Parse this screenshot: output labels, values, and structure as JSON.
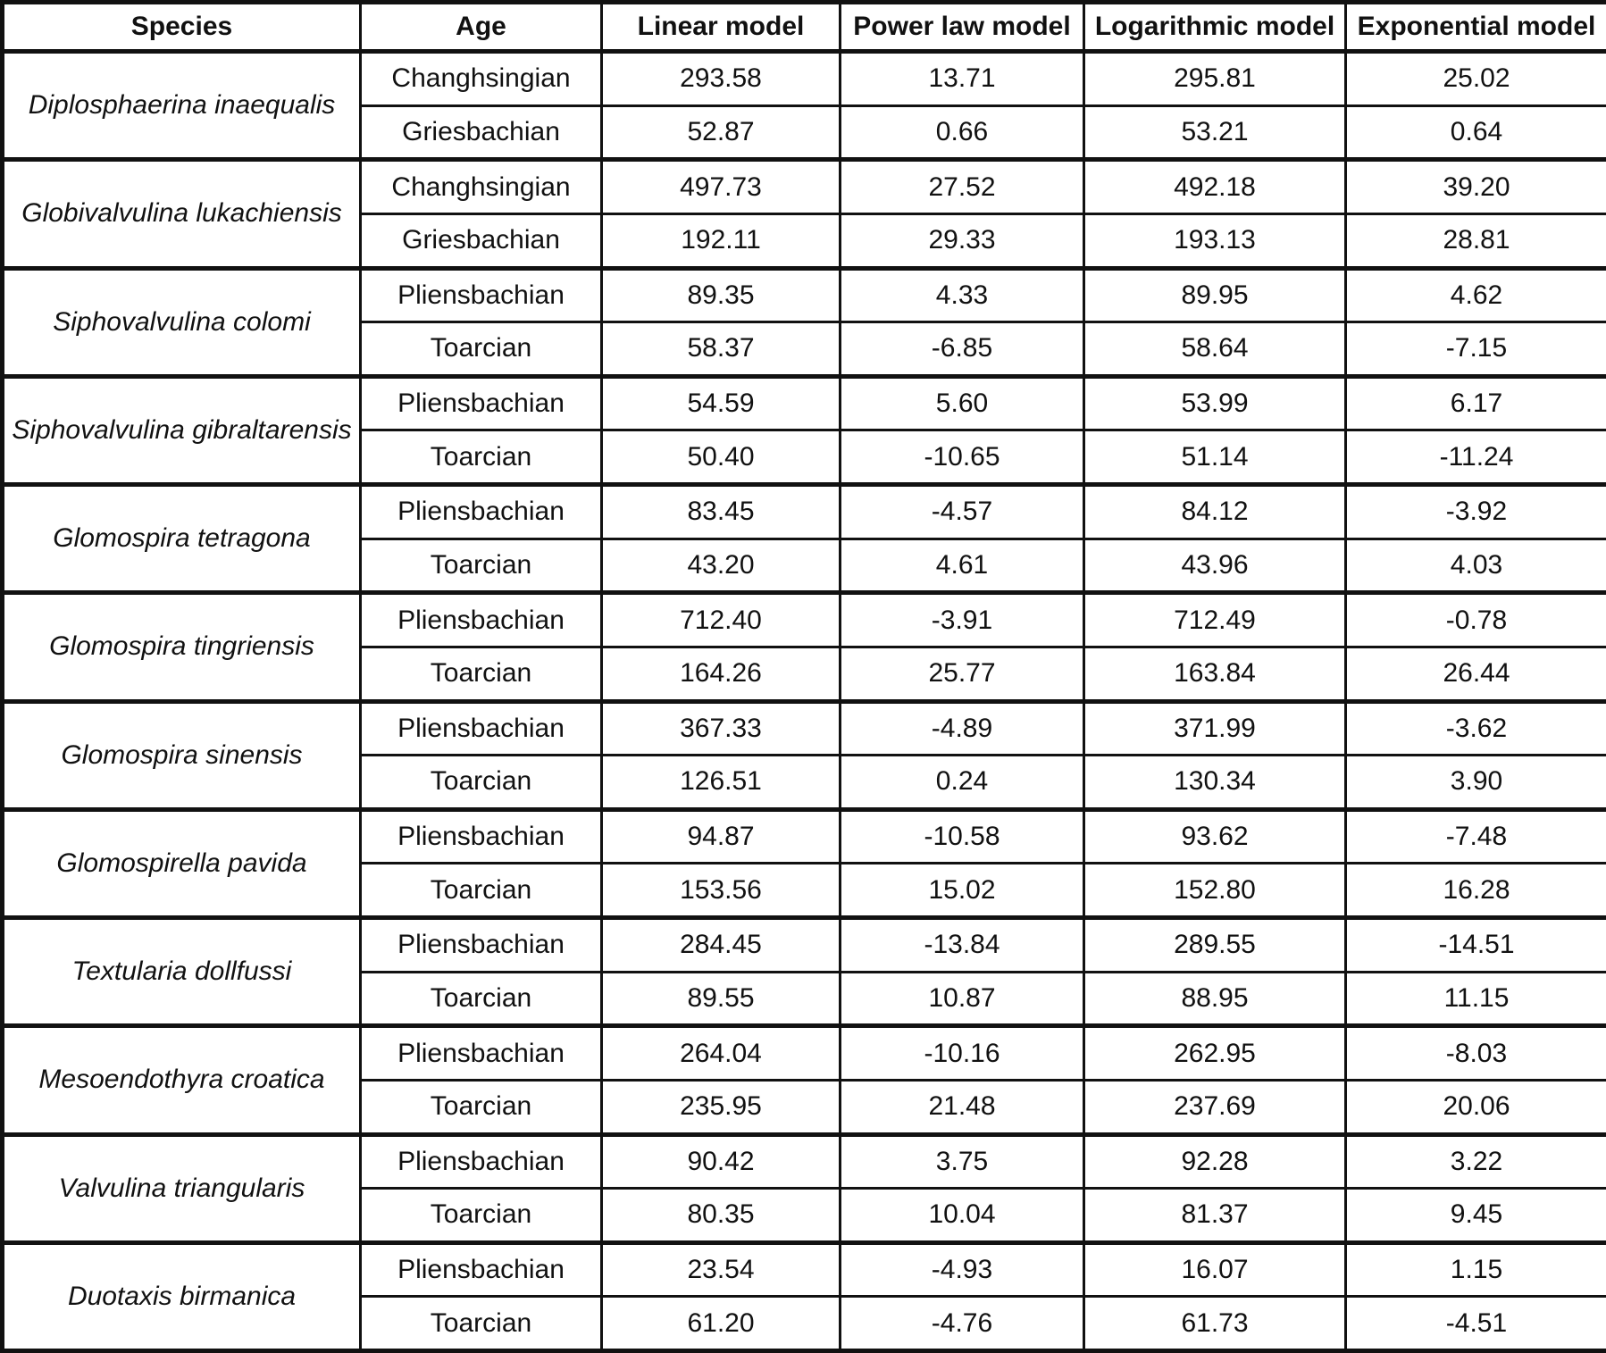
{
  "chart_data": {
    "type": "table",
    "columns": [
      "Species",
      "Age",
      "Linear model",
      "Power law model",
      "Logarithmic model",
      "Exponential model"
    ],
    "species_groups": [
      {
        "species": "Diplosphaerina inaequalis",
        "rows": [
          {
            "age": "Changhsingian",
            "values": [
              "293.58",
              "13.71",
              "295.81",
              "25.02"
            ]
          },
          {
            "age": "Griesbachian",
            "values": [
              "52.87",
              "0.66",
              "53.21",
              "0.64"
            ]
          }
        ]
      },
      {
        "species": "Globivalvulina lukachiensis",
        "rows": [
          {
            "age": "Changhsingian",
            "values": [
              "497.73",
              "27.52",
              "492.18",
              "39.20"
            ]
          },
          {
            "age": "Griesbachian",
            "values": [
              "192.11",
              "29.33",
              "193.13",
              "28.81"
            ]
          }
        ]
      },
      {
        "species": "Siphovalvulina colomi",
        "rows": [
          {
            "age": "Pliensbachian",
            "values": [
              "89.35",
              "4.33",
              "89.95",
              "4.62"
            ]
          },
          {
            "age": "Toarcian",
            "values": [
              "58.37",
              "-6.85",
              "58.64",
              "-7.15"
            ]
          }
        ]
      },
      {
        "species": "Siphovalvulina gibraltarensis",
        "rows": [
          {
            "age": "Pliensbachian",
            "values": [
              "54.59",
              "5.60",
              "53.99",
              "6.17"
            ]
          },
          {
            "age": "Toarcian",
            "values": [
              "50.40",
              "-10.65",
              "51.14",
              "-11.24"
            ]
          }
        ]
      },
      {
        "species": "Glomospira tetragona",
        "rows": [
          {
            "age": "Pliensbachian",
            "values": [
              "83.45",
              "-4.57",
              "84.12",
              "-3.92"
            ]
          },
          {
            "age": "Toarcian",
            "values": [
              "43.20",
              "4.61",
              "43.96",
              "4.03"
            ]
          }
        ]
      },
      {
        "species": "Glomospira tingriensis",
        "rows": [
          {
            "age": "Pliensbachian",
            "values": [
              "712.40",
              "-3.91",
              "712.49",
              "-0.78"
            ]
          },
          {
            "age": "Toarcian",
            "values": [
              "164.26",
              "25.77",
              "163.84",
              "26.44"
            ]
          }
        ]
      },
      {
        "species": "Glomospira sinensis",
        "rows": [
          {
            "age": "Pliensbachian",
            "values": [
              "367.33",
              "-4.89",
              "371.99",
              "-3.62"
            ]
          },
          {
            "age": "Toarcian",
            "values": [
              "126.51",
              "0.24",
              "130.34",
              "3.90"
            ]
          }
        ]
      },
      {
        "species": "Glomospirella pavida",
        "rows": [
          {
            "age": "Pliensbachian",
            "values": [
              "94.87",
              "-10.58",
              "93.62",
              "-7.48"
            ]
          },
          {
            "age": "Toarcian",
            "values": [
              "153.56",
              "15.02",
              "152.80",
              "16.28"
            ]
          }
        ]
      },
      {
        "species": "Textularia dollfussi",
        "rows": [
          {
            "age": "Pliensbachian",
            "values": [
              "284.45",
              "-13.84",
              "289.55",
              "-14.51"
            ]
          },
          {
            "age": "Toarcian",
            "values": [
              "89.55",
              "10.87",
              "88.95",
              "11.15"
            ]
          }
        ]
      },
      {
        "species": "Mesoendothyra croatica",
        "rows": [
          {
            "age": "Pliensbachian",
            "values": [
              "264.04",
              "-10.16",
              "262.95",
              "-8.03"
            ]
          },
          {
            "age": "Toarcian",
            "values": [
              "235.95",
              "21.48",
              "237.69",
              "20.06"
            ]
          }
        ]
      },
      {
        "species": "Valvulina triangularis",
        "rows": [
          {
            "age": "Pliensbachian",
            "values": [
              "90.42",
              "3.75",
              "92.28",
              "3.22"
            ]
          },
          {
            "age": "Toarcian",
            "values": [
              "80.35",
              "10.04",
              "81.37",
              "9.45"
            ]
          }
        ]
      },
      {
        "species": "Duotaxis birmanica",
        "rows": [
          {
            "age": "Pliensbachian",
            "values": [
              "23.54",
              "-4.93",
              "16.07",
              "1.15"
            ]
          },
          {
            "age": "Toarcian",
            "values": [
              "61.20",
              "-4.76",
              "61.73",
              "-4.51"
            ]
          }
        ]
      }
    ]
  }
}
